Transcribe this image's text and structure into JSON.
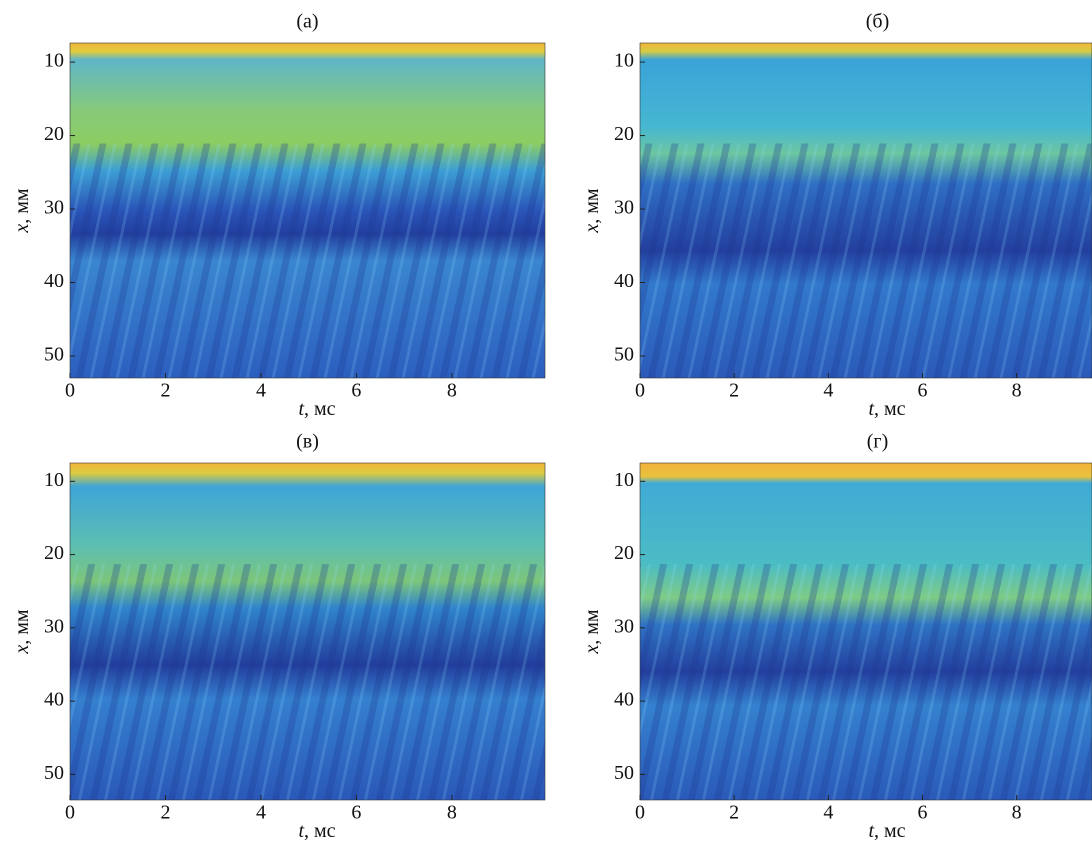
{
  "chart_data": [
    {
      "type": "heatmap",
      "title": "(а)",
      "xlabel": {
        "symbol": "t",
        "unit": ", мс"
      },
      "ylabel": {
        "symbol": "x",
        "unit": ", мм"
      },
      "xlim": [
        0,
        9.95
      ],
      "ylim": [
        7.4,
        53
      ],
      "xticks": [
        0,
        2,
        4,
        6,
        8
      ],
      "yticks": [
        10,
        20,
        30,
        40,
        50
      ]
    },
    {
      "type": "heatmap",
      "title": "(б)",
      "xlabel": {
        "symbol": "t",
        "unit": ", мс"
      },
      "ylabel": {
        "symbol": "x",
        "unit": ", мм"
      },
      "xlim": [
        0,
        9.6
      ],
      "ylim": [
        7.4,
        53
      ],
      "xticks": [
        0,
        2,
        4,
        6,
        8
      ],
      "yticks": [
        10,
        20,
        30,
        40,
        50
      ]
    },
    {
      "type": "heatmap",
      "title": "(в)",
      "xlabel": {
        "symbol": "t",
        "unit": ", мс"
      },
      "ylabel": {
        "symbol": "x",
        "unit": ", мм"
      },
      "xlim": [
        0,
        9.95
      ],
      "ylim": [
        7.5,
        53.5
      ],
      "xticks": [
        0,
        2,
        4,
        6,
        8
      ],
      "yticks": [
        10,
        20,
        30,
        40,
        50
      ]
    },
    {
      "type": "heatmap",
      "title": "(г)",
      "xlabel": {
        "symbol": "t",
        "unit": ", мс"
      },
      "ylabel": {
        "symbol": "x",
        "unit": ", мм"
      },
      "xlim": [
        0,
        9.6
      ],
      "ylim": [
        7.5,
        53.5
      ],
      "xticks": [
        0,
        2,
        4,
        6,
        8
      ],
      "yticks": [
        10,
        20,
        30,
        40,
        50
      ]
    }
  ]
}
